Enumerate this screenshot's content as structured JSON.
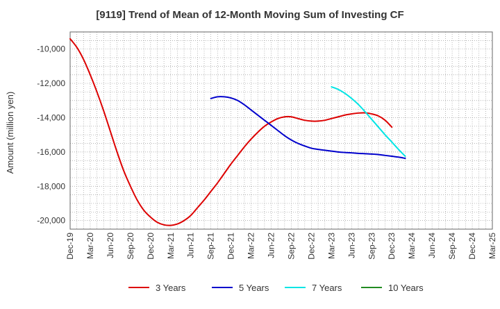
{
  "chart_data": {
    "type": "line",
    "title": "[9119]  Trend of Mean of 12-Month Moving Sum of Investing CF",
    "xlabel": "",
    "ylabel": "Amount (million yen)",
    "ylim": [
      -20500,
      -9000
    ],
    "y_ticks": [
      -20000,
      -18000,
      -16000,
      -14000,
      -12000,
      -10000
    ],
    "y_tick_labels": [
      "-20,000",
      "-18,000",
      "-16,000",
      "-14,000",
      "-12,000",
      "-10,000"
    ],
    "x_start": "Dec-19",
    "x_end": "Mar-25",
    "x_tick_labels": [
      "Dec-19",
      "Mar-20",
      "Jun-20",
      "Sep-20",
      "Dec-20",
      "Mar-21",
      "Jun-21",
      "Sep-21",
      "Dec-21",
      "Mar-22",
      "Jun-22",
      "Sep-22",
      "Dec-22",
      "Mar-23",
      "Jun-23",
      "Sep-23",
      "Dec-23",
      "Mar-24",
      "Jun-24",
      "Sep-24",
      "Dec-24",
      "Mar-25"
    ],
    "grid": true,
    "legend_position": "bottom",
    "series": [
      {
        "name": "3 Years",
        "color": "#dd0000",
        "points": [
          [
            0,
            -9400
          ],
          [
            1,
            -9900
          ],
          [
            2,
            -10600
          ],
          [
            3,
            -11500
          ],
          [
            4,
            -12500
          ],
          [
            5,
            -13600
          ],
          [
            6,
            -14800
          ],
          [
            7,
            -16000
          ],
          [
            8,
            -17100
          ],
          [
            9,
            -18000
          ],
          [
            10,
            -18800
          ],
          [
            11,
            -19400
          ],
          [
            12,
            -19800
          ],
          [
            13,
            -20100
          ],
          [
            14,
            -20250
          ],
          [
            15,
            -20280
          ],
          [
            16,
            -20200
          ],
          [
            17,
            -20000
          ],
          [
            18,
            -19700
          ],
          [
            19,
            -19250
          ],
          [
            20,
            -18800
          ],
          [
            21,
            -18300
          ],
          [
            22,
            -17800
          ],
          [
            23,
            -17250
          ],
          [
            24,
            -16700
          ],
          [
            25,
            -16200
          ],
          [
            26,
            -15700
          ],
          [
            27,
            -15250
          ],
          [
            28,
            -14850
          ],
          [
            29,
            -14500
          ],
          [
            30,
            -14250
          ],
          [
            31,
            -14050
          ],
          [
            32,
            -13950
          ],
          [
            33,
            -13950
          ],
          [
            34,
            -14050
          ],
          [
            35,
            -14150
          ],
          [
            36,
            -14200
          ],
          [
            37,
            -14200
          ],
          [
            38,
            -14150
          ],
          [
            39,
            -14050
          ],
          [
            40,
            -13950
          ],
          [
            41,
            -13850
          ],
          [
            42,
            -13780
          ],
          [
            43,
            -13730
          ],
          [
            44,
            -13720
          ],
          [
            45,
            -13780
          ],
          [
            46,
            -13900
          ],
          [
            47,
            -14150
          ],
          [
            48,
            -14550
          ]
        ]
      },
      {
        "name": "5 Years",
        "color": "#0000cc",
        "points": [
          [
            21,
            -12880
          ],
          [
            22,
            -12780
          ],
          [
            23,
            -12780
          ],
          [
            24,
            -12850
          ],
          [
            25,
            -13000
          ],
          [
            26,
            -13250
          ],
          [
            27,
            -13550
          ],
          [
            28,
            -13850
          ],
          [
            29,
            -14150
          ],
          [
            30,
            -14450
          ],
          [
            31,
            -14750
          ],
          [
            32,
            -15050
          ],
          [
            33,
            -15300
          ],
          [
            34,
            -15500
          ],
          [
            35,
            -15650
          ],
          [
            36,
            -15780
          ],
          [
            37,
            -15850
          ],
          [
            38,
            -15900
          ],
          [
            39,
            -15950
          ],
          [
            40,
            -16000
          ],
          [
            41,
            -16030
          ],
          [
            42,
            -16050
          ],
          [
            43,
            -16080
          ],
          [
            44,
            -16100
          ],
          [
            45,
            -16120
          ],
          [
            46,
            -16150
          ],
          [
            47,
            -16200
          ],
          [
            48,
            -16250
          ],
          [
            49,
            -16300
          ],
          [
            50,
            -16370
          ]
        ]
      },
      {
        "name": "7 Years",
        "color": "#00e5e5",
        "points": [
          [
            39,
            -12200
          ],
          [
            40,
            -12350
          ],
          [
            41,
            -12580
          ],
          [
            42,
            -12880
          ],
          [
            43,
            -13230
          ],
          [
            44,
            -13650
          ],
          [
            45,
            -14100
          ],
          [
            46,
            -14550
          ],
          [
            47,
            -15000
          ],
          [
            48,
            -15420
          ],
          [
            49,
            -15850
          ],
          [
            50,
            -16250
          ]
        ]
      },
      {
        "name": "10 Years",
        "color": "#228b22",
        "points": []
      }
    ]
  }
}
